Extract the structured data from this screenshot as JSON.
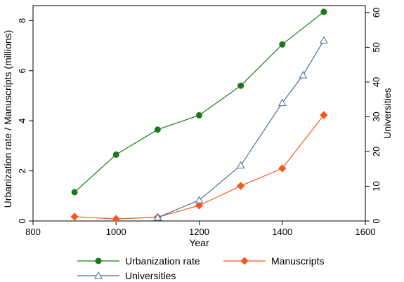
{
  "chart_data": {
    "type": "line",
    "title": "",
    "xlabel": "Year",
    "ylabel_left": "Urbanization rate / Manuscripts (millions)",
    "ylabel_right": "Universities",
    "xlim": [
      800,
      1600
    ],
    "ylim_left": [
      0,
      8.6
    ],
    "ylim_right": [
      0,
      62
    ],
    "x_ticks": [
      800,
      1000,
      1200,
      1400,
      1600
    ],
    "y_left_ticks": [
      0,
      2,
      4,
      6,
      8
    ],
    "y_right_ticks": [
      0,
      10,
      20,
      30,
      40,
      50,
      60
    ],
    "grid": false,
    "legend_position": "bottom",
    "series": [
      {
        "name": "Urbanization rate",
        "axis": "left",
        "color": "#1a7a1a",
        "marker": "circle",
        "x": [
          900,
          1000,
          1100,
          1200,
          1300,
          1400,
          1500
        ],
        "y": [
          1.15,
          2.65,
          3.65,
          4.22,
          5.4,
          7.05,
          8.35
        ]
      },
      {
        "name": "Manuscripts",
        "axis": "left",
        "color": "#f05a1e",
        "marker": "diamond",
        "x": [
          900,
          1000,
          1100,
          1200,
          1300,
          1400,
          1500
        ],
        "y": [
          0.17,
          0.08,
          0.15,
          0.62,
          1.4,
          2.1,
          4.23
        ]
      },
      {
        "name": "Universities",
        "axis": "right",
        "color": "#4a6b94",
        "marker": "triangle",
        "x": [
          1100,
          1200,
          1300,
          1400,
          1450,
          1500
        ],
        "y": [
          1,
          6,
          16,
          34,
          42,
          52
        ]
      }
    ]
  }
}
